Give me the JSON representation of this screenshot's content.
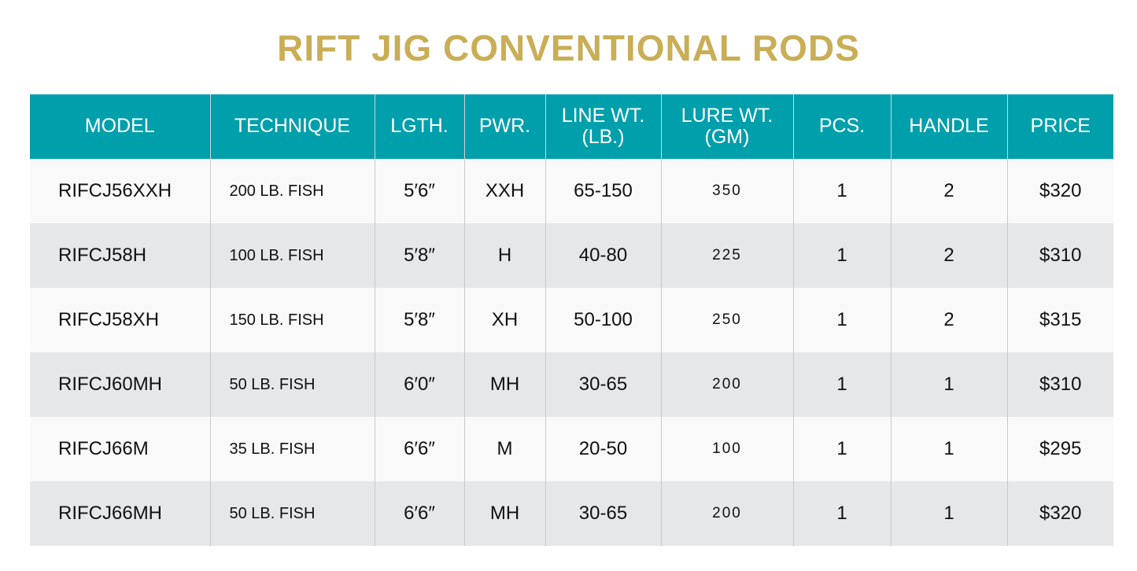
{
  "title": "RIFT JIG CONVENTIONAL RODS",
  "colors": {
    "title": "#c9ae56",
    "header": "#009fac",
    "row_light": "#f9f9f9",
    "row_dark": "#e6e7e9"
  },
  "columns": [
    "MODEL",
    "TECHNIQUE",
    "LGTH.",
    "PWR.",
    "LINE WT. (LB.)",
    "LURE WT. (GM)",
    "PCS.",
    "HANDLE",
    "PRICE"
  ],
  "rows": [
    [
      "RIFCJ56XXH",
      "200 LB. FISH",
      "5′6″",
      "XXH",
      "65-150",
      "350",
      "1",
      "2",
      "$320"
    ],
    [
      "RIFCJ58H",
      "100 LB. FISH",
      "5′8″",
      "H",
      "40-80",
      "225",
      "1",
      "2",
      "$310"
    ],
    [
      "RIFCJ58XH",
      "150 LB. FISH",
      "5′8″",
      "XH",
      "50-100",
      "250",
      "1",
      "2",
      "$315"
    ],
    [
      "RIFCJ60MH",
      "50 LB. FISH",
      "6′0″",
      "MH",
      "30-65",
      "200",
      "1",
      "1",
      "$310"
    ],
    [
      "RIFCJ66M",
      "35 LB. FISH",
      "6′6″",
      "M",
      "20-50",
      "100",
      "1",
      "1",
      "$295"
    ],
    [
      "RIFCJ66MH",
      "50 LB. FISH",
      "6′6″",
      "MH",
      "30-65",
      "200",
      "1",
      "1",
      "$320"
    ]
  ]
}
